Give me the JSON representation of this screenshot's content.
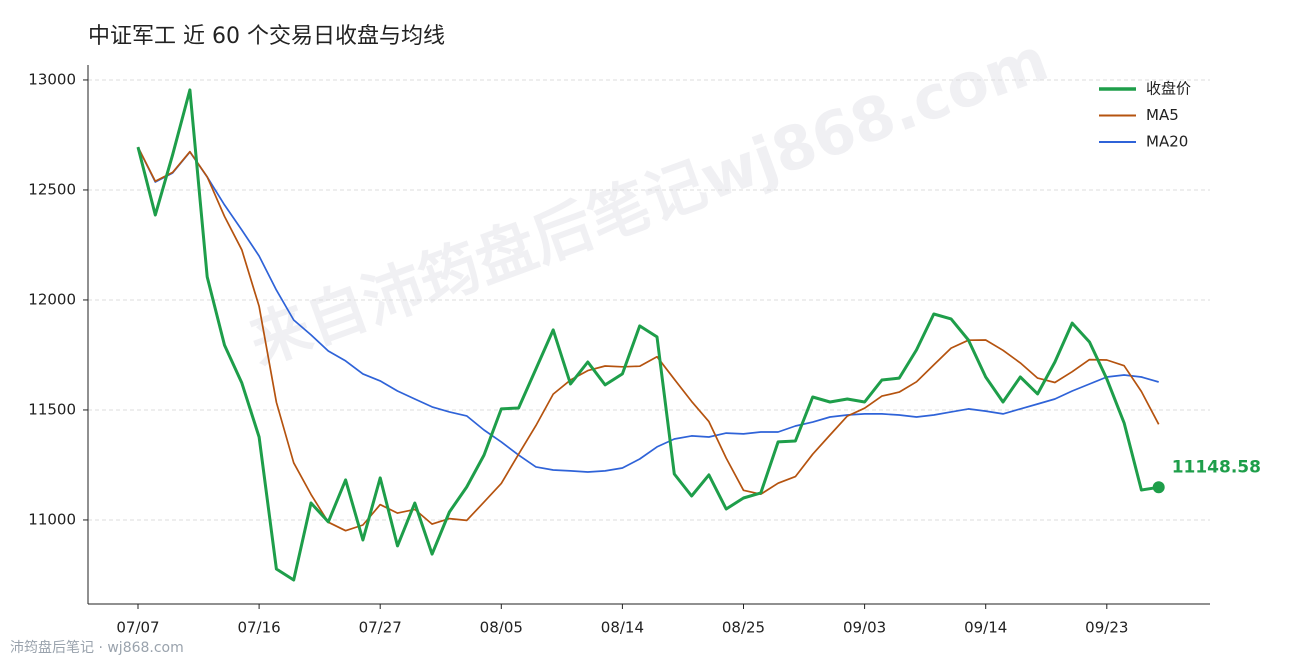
{
  "chart_data": {
    "type": "line",
    "title": "中证军工 近 60 个交易日收盘与均线",
    "watermark": "来自沛筠盘后笔记wj868.com",
    "footer": "沛筠盘后笔记 · wj868.com",
    "categories": [
      "07/07",
      null,
      null,
      null,
      null,
      null,
      null,
      "07/16",
      null,
      null,
      null,
      null,
      null,
      null,
      "07/27",
      null,
      null,
      null,
      null,
      null,
      null,
      "08/05",
      null,
      null,
      null,
      null,
      null,
      null,
      "08/14",
      null,
      null,
      null,
      null,
      null,
      null,
      "08/25",
      null,
      null,
      null,
      null,
      null,
      null,
      "09/03",
      null,
      null,
      null,
      null,
      null,
      null,
      "09/14",
      null,
      null,
      null,
      null,
      null,
      null,
      "09/23",
      null,
      null,
      null
    ],
    "series": [
      {
        "name": "收盘价",
        "color": "#1e9e4a",
        "values": [
          12695,
          12386,
          12660,
          12955,
          12105,
          11795,
          11623,
          11377,
          10777,
          10727,
          11077,
          10991,
          11182,
          10909,
          11191,
          10882,
          11077,
          10845,
          11036,
          11150,
          11295,
          11505,
          11509,
          11686,
          11864,
          11618,
          11718,
          11614,
          11664,
          11882,
          11832,
          11209,
          11109,
          11205,
          11050,
          11100,
          11123,
          11355,
          11359,
          11559,
          11536,
          11550,
          11536,
          11636,
          11645,
          11773,
          11936,
          11914,
          11818,
          11650,
          11536,
          11650,
          11573,
          11718,
          11895,
          11809,
          11641,
          11441,
          11136,
          11148.58
        ],
        "value_labels": [
          null,
          null,
          null,
          null,
          null,
          null,
          null,
          null,
          null,
          null,
          null,
          null,
          null,
          null,
          null,
          null,
          null,
          null,
          null,
          null,
          null,
          null,
          null,
          null,
          null,
          null,
          null,
          null,
          null,
          null,
          null,
          null,
          null,
          null,
          null,
          null,
          null,
          null,
          null,
          null,
          null,
          null,
          null,
          null,
          null,
          null,
          null,
          null,
          null,
          null,
          null,
          null,
          null,
          null,
          null,
          null,
          null,
          null,
          null,
          "11148.58"
        ]
      },
      {
        "name": "MA5",
        "color": "#b5530f",
        "values": [
          12695,
          12540,
          12580,
          12674,
          12560,
          12380,
          12228,
          11971,
          11535,
          11260,
          11116,
          10990,
          10951,
          10977,
          11070,
          11031,
          11048,
          10981,
          11006,
          10998,
          11081,
          11166,
          11299,
          11429,
          11572,
          11636,
          11679,
          11700,
          11696,
          11699,
          11742,
          11640,
          11539,
          11447,
          11281,
          11135,
          11117,
          11167,
          11197,
          11299,
          11386,
          11472,
          11508,
          11563,
          11581,
          11628,
          11705,
          11781,
          11817,
          11818,
          11771,
          11714,
          11645,
          11625,
          11674,
          11729,
          11727,
          11701,
          11584,
          11435
        ]
      },
      {
        "name": "MA20",
        "color": "#2f63d8",
        "values": [
          12695,
          12536,
          12577,
          12673,
          12559,
          12432,
          12318,
          12200,
          12045,
          11909,
          11841,
          11768,
          11723,
          11664,
          11632,
          11586,
          11550,
          11514,
          11491,
          11473,
          11409,
          11355,
          11295,
          11241,
          11227,
          11223,
          11218,
          11223,
          11236,
          11277,
          11332,
          11368,
          11382,
          11377,
          11395,
          11391,
          11400,
          11400,
          11427,
          11445,
          11468,
          11477,
          11482,
          11482,
          11477,
          11468,
          11477,
          11491,
          11505,
          11495,
          11482,
          11505,
          11527,
          11550,
          11586,
          11618,
          11650,
          11659,
          11650,
          11627
        ]
      }
    ],
    "ylim": [
      10618,
      13068
    ],
    "yticks": [
      11000,
      11500,
      12000,
      12500,
      13000
    ],
    "grid": true,
    "legend": "upper right"
  }
}
